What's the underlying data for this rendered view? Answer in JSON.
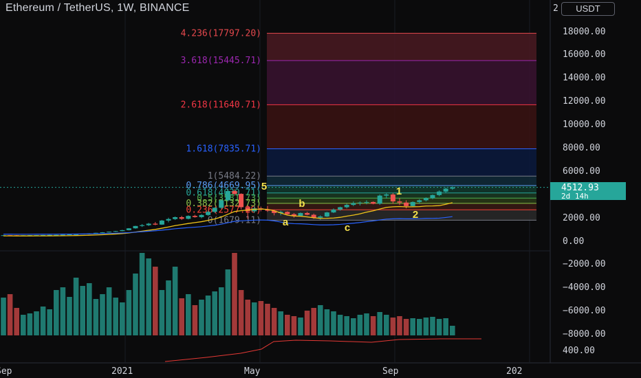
{
  "header": {
    "title": "Ethereum / TetherUS, 1W, BINANCE",
    "currency_button": "USDT",
    "price_scale_top_label": "2"
  },
  "price_tag": {
    "price": "4512.93",
    "countdown": "2d 14h",
    "color": "#26a69a"
  },
  "colors": {
    "up": "#26a69a",
    "down": "#ef5350",
    "background": "#0b0b0c"
  },
  "chart_data": {
    "type": "candlestick",
    "title": "Ethereum / TetherUS, 1W, BINANCE",
    "price_axis_ticks": [
      "18000.00",
      "16000.00",
      "14000.00",
      "12000.00",
      "10000.00",
      "8000.00",
      "6000.00",
      "2000.00",
      "0.00",
      "−2000.00",
      "−4000.00",
      "−6000.00",
      "−8000.00",
      "400.00"
    ],
    "x_axis_labels": [
      "Sep",
      "2021",
      "May",
      "Sep",
      "202"
    ],
    "fib_levels": [
      {
        "label": "4.236(17797.20)",
        "value": 17797.2,
        "color": "#e5484d"
      },
      {
        "label": "3.618(15445.71)",
        "value": 15445.71,
        "color": "#9c27b0"
      },
      {
        "label": "2.618(11640.71)",
        "value": 11640.71,
        "color": "#f23645"
      },
      {
        "label": "1.618(7835.71)",
        "value": 7835.71,
        "color": "#2962ff"
      },
      {
        "label": "1(5484.22)",
        "value": 5484.22,
        "color": "#787b86"
      },
      {
        "label": "0.786(4669.95)",
        "value": 4669.95,
        "color": "#5b9cf6"
      },
      {
        "label": "0.618(4030.71)",
        "value": 4030.71,
        "color": "#26a69a"
      },
      {
        "label": "0.5(3581.73)",
        "value": 3581.73,
        "color": "#4caf50"
      },
      {
        "label": "0.382(3132.73)",
        "value": 3132.73,
        "color": "#8bc34a"
      },
      {
        "label": "0.236(2577.20)",
        "value": 2577.2,
        "color": "#f44336"
      },
      {
        "label": "0(1679.11)",
        "value": 1679.11,
        "color": "#787b86"
      }
    ],
    "wave_labels": [
      "5",
      "a",
      "b",
      "c",
      "1",
      "2"
    ],
    "candles": [
      [
        380,
        390,
        370,
        385
      ],
      [
        385,
        395,
        375,
        380
      ],
      [
        380,
        390,
        360,
        370
      ],
      [
        370,
        385,
        360,
        380
      ],
      [
        380,
        395,
        370,
        388
      ],
      [
        388,
        400,
        380,
        392
      ],
      [
        392,
        410,
        385,
        405
      ],
      [
        405,
        420,
        395,
        412
      ],
      [
        412,
        430,
        400,
        418
      ],
      [
        418,
        440,
        410,
        432
      ],
      [
        432,
        460,
        425,
        455
      ],
      [
        455,
        480,
        440,
        470
      ],
      [
        470,
        520,
        460,
        510
      ],
      [
        510,
        560,
        500,
        545
      ],
      [
        545,
        600,
        530,
        590
      ],
      [
        590,
        650,
        570,
        630
      ],
      [
        630,
        700,
        610,
        690
      ],
      [
        690,
        760,
        660,
        740
      ],
      [
        740,
        850,
        720,
        820
      ],
      [
        820,
        1000,
        800,
        980
      ],
      [
        980,
        1200,
        950,
        1180
      ],
      [
        1180,
        1350,
        1100,
        1250
      ],
      [
        1250,
        1450,
        1180,
        1380
      ],
      [
        1380,
        1520,
        1250,
        1300
      ],
      [
        1300,
        1700,
        1280,
        1650
      ],
      [
        1650,
        1900,
        1500,
        1780
      ],
      [
        1780,
        2000,
        1700,
        1940
      ],
      [
        1940,
        2050,
        1700,
        1800
      ],
      [
        1800,
        2100,
        1750,
        2050
      ],
      [
        2050,
        2150,
        1900,
        1950
      ],
      [
        1950,
        2200,
        1850,
        2130
      ],
      [
        2130,
        2500,
        2050,
        2400
      ],
      [
        2400,
        2800,
        2300,
        2750
      ],
      [
        2750,
        3500,
        2650,
        3400
      ],
      [
        3400,
        4380,
        3300,
        4200
      ],
      [
        4200,
        4350,
        3800,
        3950
      ],
      [
        3950,
        4000,
        2600,
        2800
      ],
      [
        2800,
        2950,
        1800,
        2450
      ],
      [
        2450,
        2900,
        2300,
        2700
      ],
      [
        2700,
        2850,
        2450,
        2600
      ],
      [
        2600,
        2900,
        2400,
        2500
      ],
      [
        2500,
        2600,
        2100,
        2300
      ],
      [
        2300,
        2500,
        2100,
        2400
      ],
      [
        2400,
        2450,
        2100,
        2200
      ],
      [
        2200,
        2300,
        1900,
        2050
      ],
      [
        2050,
        2350,
        2000,
        2300
      ],
      [
        2300,
        2400,
        2100,
        2150
      ],
      [
        2150,
        2250,
        1800,
        1900
      ],
      [
        1900,
        2100,
        1720,
        2000
      ],
      [
        2000,
        2400,
        1950,
        2350
      ],
      [
        2350,
        2700,
        2300,
        2600
      ],
      [
        2600,
        2850,
        2500,
        2800
      ],
      [
        2800,
        3100,
        2700,
        3000
      ],
      [
        3000,
        3300,
        2900,
        3150
      ],
      [
        3150,
        3300,
        2950,
        3200
      ],
      [
        3200,
        3400,
        3050,
        3250
      ],
      [
        3250,
        3300,
        3050,
        3100
      ],
      [
        3100,
        3900,
        3000,
        3800
      ],
      [
        3800,
        4000,
        3550,
        3900
      ],
      [
        3900,
        4030,
        3100,
        3300
      ],
      [
        3300,
        3600,
        3000,
        3200
      ],
      [
        3200,
        3400,
        2700,
        2900
      ],
      [
        2900,
        3300,
        2850,
        3250
      ],
      [
        3250,
        3500,
        3100,
        3400
      ],
      [
        3400,
        3650,
        3300,
        3580
      ],
      [
        3580,
        3900,
        3500,
        3850
      ],
      [
        3850,
        4250,
        3750,
        4150
      ],
      [
        4150,
        4500,
        4050,
        4400
      ],
      [
        4400,
        4600,
        4300,
        4512
      ]
    ],
    "volume_heights": [
      55,
      60,
      40,
      30,
      32,
      35,
      42,
      38,
      66,
      70,
      56,
      84,
      72,
      76,
      53,
      60,
      70,
      55,
      48,
      66,
      90,
      120,
      112,
      100,
      66,
      80,
      100,
      54,
      60,
      44,
      52,
      58,
      64,
      70,
      96,
      120,
      66,
      52,
      48,
      50,
      46,
      40,
      35,
      30,
      28,
      26,
      36,
      40,
      44,
      38,
      35,
      30,
      28,
      25,
      30,
      32,
      28,
      34,
      30,
      26,
      28,
      24,
      25,
      24,
      26,
      27,
      24,
      25,
      14
    ],
    "moving_average_color": "#f0c419",
    "long_average_color": "#2962ff"
  }
}
